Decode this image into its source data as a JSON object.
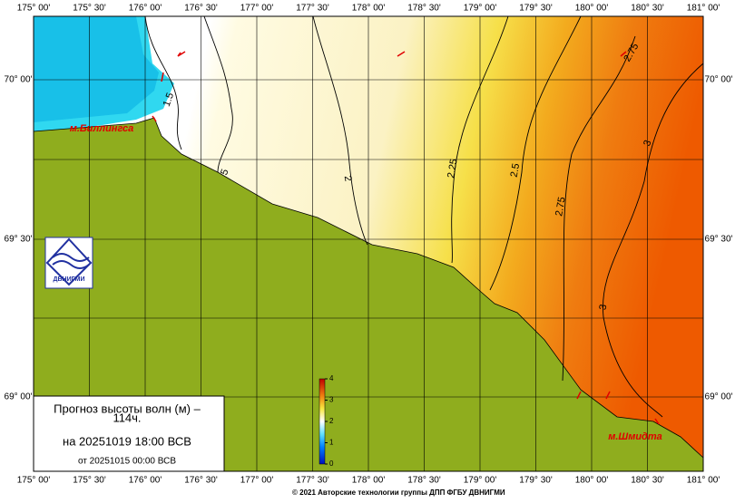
{
  "map": {
    "lon_labels": [
      "175° 00'",
      "175° 30'",
      "176° 00'",
      "176° 30'",
      "177° 00'",
      "177° 30'",
      "178° 00'",
      "178° 30'",
      "179° 00'",
      "179° 30'",
      "180° 00'",
      "180° 30'",
      "181° 00'"
    ],
    "lat_labels": [
      "70° 00'",
      "69° 30'",
      "69° 00'"
    ],
    "contour_labels": [
      "1.5",
      "5",
      "2",
      "2.25",
      "2.5",
      "2.75",
      "2.75",
      "3",
      "3"
    ],
    "places": [
      "м.Биллингса",
      "м.Шмидта"
    ],
    "colorbar": {
      "ticks": [
        0,
        1,
        2,
        3,
        4
      ]
    },
    "logo": "ДВНИГМИ",
    "forecast": {
      "title": "Прогноз высоты волн (м) –",
      "lead": "114ч.",
      "valid": "на 20251019 18:00 ВСВ",
      "issued": "от 20251015 00:00 ВСВ"
    }
  },
  "footer": "© 2021 Авторские технологии группы ДПП ФГБУ ДВНИГМИ"
}
